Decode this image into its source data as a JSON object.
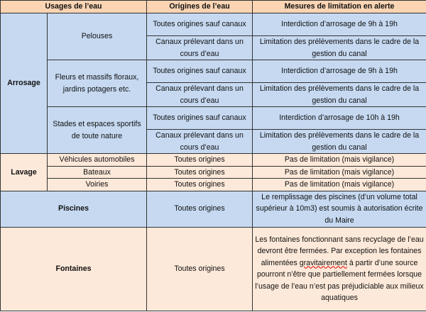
{
  "headers": [
    "Usages de l’eau",
    "Origines de l’eau",
    "Mesures de limitation en alerte"
  ],
  "arrosage": {
    "label": "Arrosage",
    "items": [
      {
        "usage": "Pelouses",
        "rows": [
          {
            "origin": "Toutes origines sauf canaux",
            "measure": "Interdiction d’arrosage de 9h à 19h"
          },
          {
            "origin": "Canaux prélevant dans un cours d’eau",
            "measure": "Limitation des prélèvements dans le cadre de la gestion du canal"
          }
        ]
      },
      {
        "usage": "Fleurs et massifs floraux, jardins potagers etc.",
        "rows": [
          {
            "origin": "Toutes origines sauf canaux",
            "measure": "Interdiction d’arrosage de 9h à 19h"
          },
          {
            "origin": "Canaux prélevant dans un cours d’eau",
            "measure": "Limitation des prélèvements dans le cadre de la gestion du canal"
          }
        ]
      },
      {
        "usage": "Stades et espaces sportifs de toute nature",
        "rows": [
          {
            "origin": "Toutes origines sauf canaux",
            "measure": "Interdiction d’arrosage de 10h à 19h"
          },
          {
            "origin": "Canaux prélevant dans un cours d’eau",
            "measure": "Limitation des prélèvements dans le cadre de la gestion du canal"
          }
        ]
      }
    ]
  },
  "lavage": {
    "label": "Lavage",
    "items": [
      {
        "usage": "Véhicules automobiles",
        "origin": "Toutes origines",
        "measure": "Pas de limitation (mais vigilance)"
      },
      {
        "usage": "Bateaux",
        "origin": "Toutes origines",
        "measure": "Pas de limitation (mais vigilance)"
      },
      {
        "usage": "Voiries",
        "origin": "Toutes origines",
        "measure": "Pas de limitation (mais vigilance)"
      }
    ]
  },
  "piscines": {
    "label": "Piscines",
    "origin": "Toutes origines",
    "measure": "Le remplissage des piscines (d’un volume total supérieur à 10m3) est soumis à autorisation écrite du Maire"
  },
  "fontaines": {
    "label": "Fontaines",
    "origin": "Toutes origines",
    "measure_a": "Les fontaines fonctionnant sans recyclage de l’eau devront être fermées. Par exception les fontaines alimentées ",
    "measure_spell": "gravitairement",
    "measure_b": " à partir d’une source pourront n’être que partiellement fermées lorsque l’usage de l’eau n’est pas préjudiciable aux milieux aquatiques"
  },
  "colors": {
    "header": "#fbd4b4",
    "blue": "#c6d9f1",
    "peach": "#fde9d9"
  }
}
